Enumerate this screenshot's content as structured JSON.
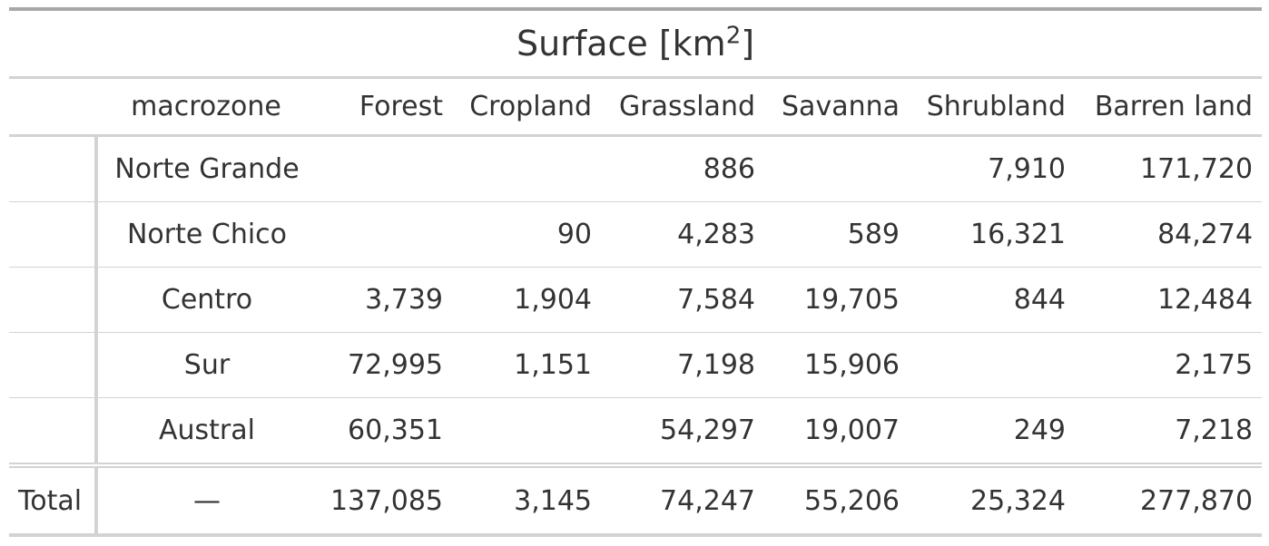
{
  "title": {
    "prefix": "Surface [km",
    "superscript": "2",
    "suffix": "]"
  },
  "columns": {
    "stub": "",
    "macrozone": "macrozone",
    "forest": "Forest",
    "cropland": "Cropland",
    "grassland": "Grassland",
    "savanna": "Savanna",
    "shrubland": "Shrubland",
    "barren": "Barren land"
  },
  "rows": [
    {
      "macrozone": "Norte Grande",
      "forest": "",
      "cropland": "",
      "grassland": "886",
      "savanna": "",
      "shrubland": "7,910",
      "barren": "171,720"
    },
    {
      "macrozone": "Norte Chico",
      "forest": "",
      "cropland": "90",
      "grassland": "4,283",
      "savanna": "589",
      "shrubland": "16,321",
      "barren": "84,274"
    },
    {
      "macrozone": "Centro",
      "forest": "3,739",
      "cropland": "1,904",
      "grassland": "7,584",
      "savanna": "19,705",
      "shrubland": "844",
      "barren": "12,484"
    },
    {
      "macrozone": "Sur",
      "forest": "72,995",
      "cropland": "1,151",
      "grassland": "7,198",
      "savanna": "15,906",
      "shrubland": "",
      "barren": "2,175"
    },
    {
      "macrozone": "Austral",
      "forest": "60,351",
      "cropland": "",
      "grassland": "54,297",
      "savanna": "19,007",
      "shrubland": "249",
      "barren": "7,218"
    }
  ],
  "total": {
    "label": "Total",
    "macrozone": "—",
    "forest": "137,085",
    "cropland": "3,145",
    "grassland": "74,247",
    "savanna": "55,206",
    "shrubland": "25,324",
    "barren": "277,870"
  }
}
